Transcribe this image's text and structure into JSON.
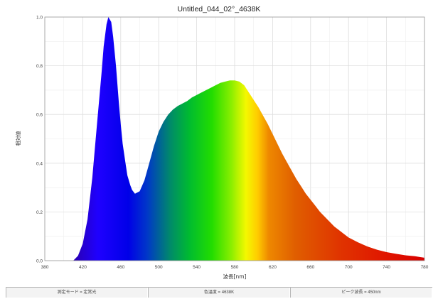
{
  "chart_data": {
    "type": "area",
    "title": "Untitled_044_02°_4638K",
    "xlabel": "波長[nm]",
    "ylabel": "相対値",
    "xlim": [
      380,
      780
    ],
    "ylim": [
      0,
      1.0
    ],
    "x_ticks": [
      "380",
      "420",
      "460",
      "500",
      "540",
      "580",
      "620",
      "660",
      "700",
      "740",
      "780"
    ],
    "y_ticks": [
      "0.0",
      "0.2",
      "0.4",
      "0.6",
      "0.8",
      "1.0"
    ],
    "grid": true,
    "fill": "visible-spectrum gradient (violet → blue → green → yellow → red)",
    "series": [
      {
        "x": [
          380,
          410,
          415,
          420,
          425,
          430,
          435,
          440,
          442,
          445,
          447,
          450,
          452,
          455,
          458,
          460,
          462,
          465,
          467,
          470,
          472,
          475,
          480,
          485,
          490,
          495,
          500,
          505,
          510,
          515,
          520,
          525,
          530,
          535,
          540,
          545,
          550,
          555,
          560,
          565,
          570,
          575,
          580,
          585,
          590,
          595,
          600,
          605,
          610,
          615,
          620,
          625,
          630,
          635,
          640,
          645,
          650,
          655,
          660,
          665,
          670,
          675,
          680,
          685,
          690,
          695,
          700,
          710,
          720,
          730,
          740,
          750,
          760,
          770,
          775,
          780
        ],
        "y": [
          0.0,
          0.0,
          0.02,
          0.07,
          0.17,
          0.34,
          0.56,
          0.78,
          0.88,
          0.97,
          1.0,
          0.98,
          0.92,
          0.8,
          0.65,
          0.56,
          0.48,
          0.4,
          0.35,
          0.31,
          0.29,
          0.275,
          0.285,
          0.33,
          0.4,
          0.47,
          0.53,
          0.57,
          0.6,
          0.62,
          0.635,
          0.645,
          0.655,
          0.67,
          0.68,
          0.69,
          0.7,
          0.71,
          0.72,
          0.73,
          0.735,
          0.74,
          0.74,
          0.735,
          0.72,
          0.69,
          0.66,
          0.63,
          0.595,
          0.56,
          0.52,
          0.48,
          0.44,
          0.405,
          0.37,
          0.335,
          0.305,
          0.275,
          0.25,
          0.225,
          0.2,
          0.18,
          0.16,
          0.14,
          0.125,
          0.11,
          0.095,
          0.075,
          0.058,
          0.045,
          0.035,
          0.028,
          0.022,
          0.018,
          0.015,
          0.012
        ]
      }
    ]
  },
  "status_bar": {
    "measure_mode": "測定モード = 定常光",
    "color_temperature": "色温度 = 4638K",
    "peak_wavelength": "ピーク波長 = 450nm"
  }
}
